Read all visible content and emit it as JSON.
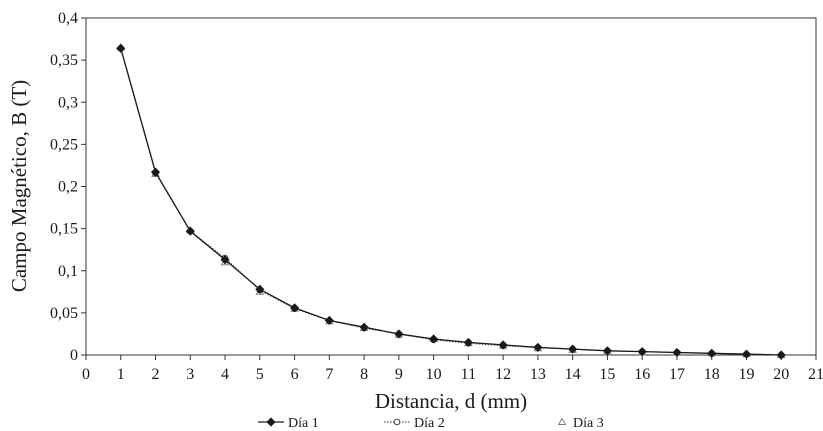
{
  "chart_data": {
    "type": "line",
    "xlabel": "Distancia, d (mm)",
    "ylabel": "Campo Magnético, B (T)",
    "xlim": [
      0,
      21
    ],
    "ylim": [
      0,
      0.4
    ],
    "x_ticks": [
      "0",
      "1",
      "2",
      "3",
      "4",
      "5",
      "6",
      "7",
      "8",
      "9",
      "10",
      "11",
      "12",
      "13",
      "14",
      "15",
      "16",
      "17",
      "18",
      "19",
      "20",
      "21"
    ],
    "y_ticks": [
      "0",
      "0,05",
      "0,1",
      "0,15",
      "0,2",
      "0,25",
      "0,3",
      "0,35",
      "0,4"
    ],
    "grid": false,
    "legend_position": "bottom",
    "x": [
      1,
      2,
      3,
      4,
      5,
      6,
      7,
      8,
      9,
      10,
      11,
      12,
      13,
      14,
      15,
      16,
      17,
      18,
      19,
      20
    ],
    "series": [
      {
        "name": "Día 1",
        "line_style": "solid",
        "marker": "filled-diamond",
        "values": [
          0.364,
          0.217,
          0.147,
          0.113,
          0.078,
          0.056,
          0.041,
          0.033,
          0.025,
          0.019,
          0.015,
          0.012,
          0.009,
          0.007,
          0.005,
          0.004,
          0.003,
          0.002,
          0.001,
          0.0
        ]
      },
      {
        "name": "Día 2",
        "line_style": "dotted",
        "marker": "open-circle",
        "values": [
          0.364,
          0.216,
          0.147,
          0.115,
          0.077,
          0.055,
          0.041,
          0.032,
          0.025,
          0.018,
          0.014,
          0.011,
          0.009,
          0.007,
          0.005,
          0.004,
          0.003,
          0.002,
          0.001,
          0.0
        ]
      },
      {
        "name": "Día 3",
        "line_style": "none",
        "marker": "open-triangle",
        "values": [
          0.365,
          0.215,
          0.148,
          0.11,
          0.075,
          0.055,
          0.04,
          0.032,
          0.024,
          0.019,
          0.014,
          0.011,
          0.008,
          0.006,
          0.005,
          0.003,
          0.003,
          0.002,
          0.001,
          0.0
        ]
      }
    ]
  }
}
